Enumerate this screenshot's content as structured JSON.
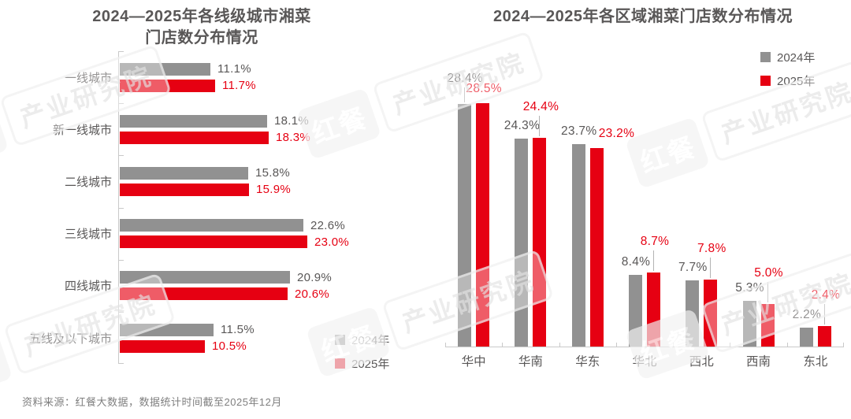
{
  "page": {
    "source_note": "资料来源：红餐大数据，数据统计时间截至2025年12月"
  },
  "watermark": {
    "brand": "红餐",
    "org": "产业研究院"
  },
  "colors": {
    "bar_2024": "#919191",
    "bar_2025": "#e60012",
    "text_dark": "#595757",
    "text_red": "#e60012",
    "axis": "#c9c9c9",
    "leader": "#b3b3b3",
    "source_text": "#7f7f7f"
  },
  "chart_data": [
    {
      "type": "bar",
      "orientation": "horizontal",
      "title": "2024—2025年各线级城市湘菜门店数分布情况",
      "title_lines": [
        "2024—2025年各线级城市湘菜",
        "门店数分布情况"
      ],
      "categories": [
        "一线城市",
        "新一线城市",
        "二线城市",
        "三线城市",
        "四线城市",
        "五线及以下城市"
      ],
      "series": [
        {
          "name": "2024年",
          "color": "#919191",
          "values": [
            11.1,
            18.1,
            15.8,
            22.6,
            20.9,
            11.5
          ]
        },
        {
          "name": "2025年",
          "color": "#e60012",
          "values": [
            11.7,
            18.3,
            15.9,
            23.0,
            20.6,
            10.5
          ]
        }
      ],
      "value_suffix": "%",
      "axis_range": [
        0,
        23
      ],
      "grid": false,
      "legend_position": "bottom-right"
    },
    {
      "type": "bar",
      "orientation": "vertical",
      "title": "2024—2025年各区域湘菜门店数分布情况",
      "categories": [
        "华中",
        "华南",
        "华东",
        "华北",
        "西北",
        "西南",
        "东北"
      ],
      "series": [
        {
          "name": "2024年",
          "color": "#919191",
          "values": [
            28.4,
            24.3,
            23.7,
            8.4,
            7.7,
            5.3,
            2.2
          ]
        },
        {
          "name": "2025年",
          "color": "#e60012",
          "values": [
            28.5,
            24.4,
            23.2,
            8.7,
            7.8,
            5.0,
            2.4
          ]
        }
      ],
      "value_suffix": "%",
      "axis_range": [
        0,
        30
      ],
      "grid": false,
      "legend_position": "top-right",
      "annotations": {
        "leader_lines": [
          "2024",
          "2025",
          "none",
          "2025",
          "2025",
          "2025",
          "2025"
        ],
        "red_label_side": [
          "above",
          "above",
          "right",
          "above",
          "above",
          "above",
          "above"
        ]
      }
    }
  ]
}
